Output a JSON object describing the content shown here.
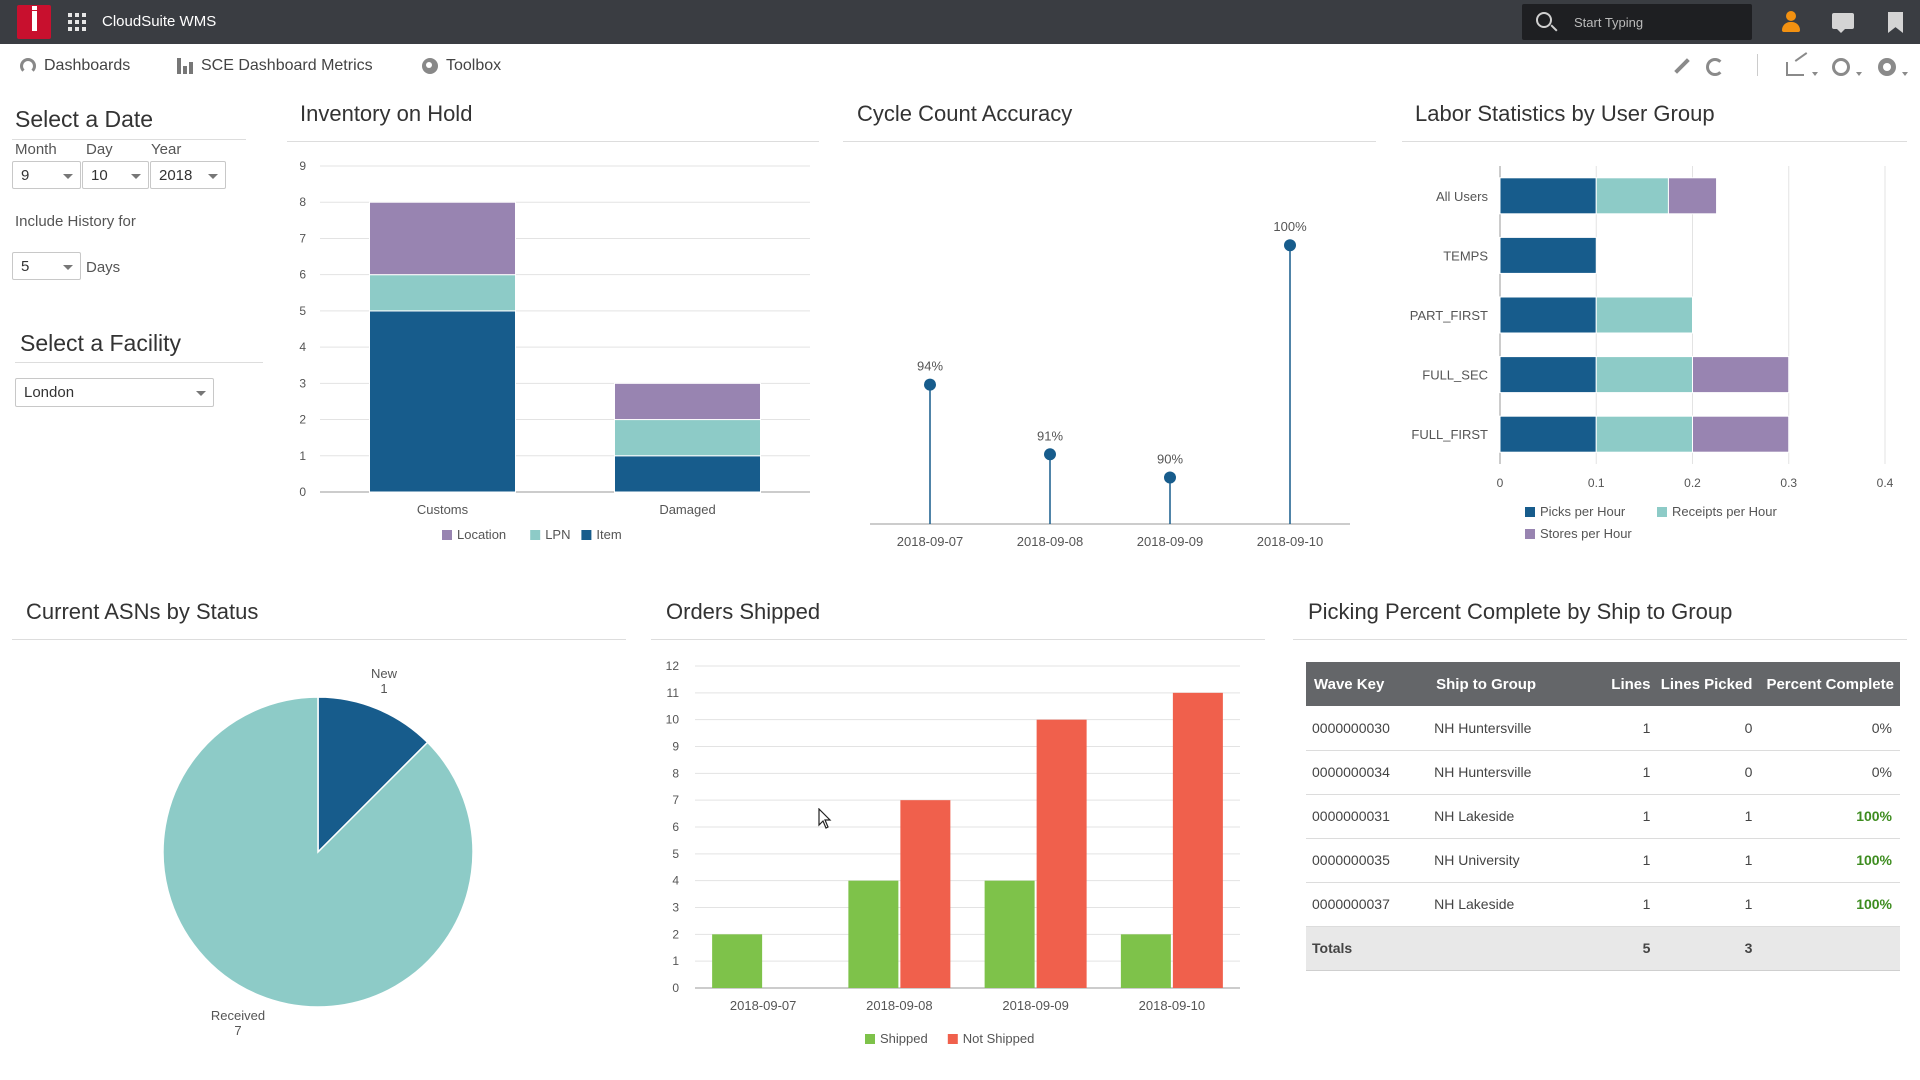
{
  "app": {
    "title": "CloudSuite WMS",
    "search_placeholder": "Start Typing"
  },
  "nav": {
    "dashboards": "Dashboards",
    "sce_metrics": "SCE Dashboard Metrics",
    "toolbox": "Toolbox"
  },
  "filters": {
    "date_title": "Select a Date",
    "month_label": "Month",
    "day_label": "Day",
    "year_label": "Year",
    "month": "9",
    "day": "10",
    "year": "2018",
    "history_label": "Include History for",
    "history_days": "5",
    "days_label": "Days",
    "facility_title": "Select a Facility",
    "facility": "London"
  },
  "panels": {
    "inventory_on_hold": "Inventory on Hold",
    "cycle_count": "Cycle Count Accuracy",
    "labor_stats": "Labor Statistics by User Group",
    "asns": "Current ASNs by Status",
    "orders_shipped": "Orders Shipped",
    "picking": "Picking Percent Complete by Ship to Group"
  },
  "colors": {
    "dark_blue": "#175c8c",
    "teal": "#8dcbc7",
    "purple": "#9884b1",
    "green": "#7ec24a",
    "red": "#f0604c",
    "header_gray": "#646669"
  },
  "chart_data": [
    {
      "id": "inventory",
      "type": "bar",
      "stacked": true,
      "categories": [
        "Customs",
        "Damaged"
      ],
      "series": [
        {
          "name": "Item",
          "values": [
            5,
            1
          ],
          "color": "#175c8c"
        },
        {
          "name": "LPN",
          "values": [
            1,
            1
          ],
          "color": "#8dcbc7"
        },
        {
          "name": "Location",
          "values": [
            2,
            1
          ],
          "color": "#9884b1"
        }
      ],
      "legend_order": [
        "Location",
        "LPN",
        "Item"
      ],
      "ylim": [
        0,
        9
      ],
      "yticks": [
        0,
        1,
        2,
        3,
        4,
        5,
        6,
        7,
        8,
        9
      ],
      "grid": true,
      "legend": "bottom"
    },
    {
      "id": "cycle",
      "type": "scatter",
      "style": "lollipop",
      "x": [
        "2018-09-07",
        "2018-09-08",
        "2018-09-09",
        "2018-09-10"
      ],
      "values": [
        94,
        91,
        90,
        100
      ],
      "labels": [
        "94%",
        "91%",
        "90%",
        "100%"
      ],
      "color": "#175c8c",
      "ylim": [
        88,
        101
      ]
    },
    {
      "id": "labor",
      "type": "bar",
      "orientation": "horizontal",
      "stacked": true,
      "categories": [
        "All Users",
        "TEMPS",
        "PART_FIRST",
        "FULL_SEC",
        "FULL_FIRST"
      ],
      "series": [
        {
          "name": "Picks per Hour",
          "values": [
            0.1,
            0.1,
            0.1,
            0.1,
            0.1
          ],
          "color": "#175c8c"
        },
        {
          "name": "Receipts per Hour",
          "values": [
            0.075,
            0,
            0.1,
            0.1,
            0.1
          ],
          "color": "#8dcbc7"
        },
        {
          "name": "Stores per Hour",
          "values": [
            0.05,
            0,
            0,
            0.1,
            0.1
          ],
          "color": "#9884b1"
        }
      ],
      "xlim": [
        0,
        0.4
      ],
      "xticks": [
        "0",
        "0.1",
        "0.2",
        "0.3",
        "0.4"
      ],
      "grid": true,
      "legend": "bottom"
    },
    {
      "id": "asn",
      "type": "pie",
      "slices": [
        {
          "name": "New",
          "value": 1,
          "color": "#175c8c"
        },
        {
          "name": "Received",
          "value": 7,
          "color": "#8dcbc7"
        }
      ]
    },
    {
      "id": "orders",
      "type": "bar",
      "categories": [
        "2018-09-07",
        "2018-09-08",
        "2018-09-09",
        "2018-09-10"
      ],
      "series": [
        {
          "name": "Shipped",
          "values": [
            2,
            4,
            4,
            2
          ],
          "color": "#7ec24a"
        },
        {
          "name": "Not Shipped",
          "values": [
            0,
            7,
            10,
            11
          ],
          "color": "#f0604c"
        }
      ],
      "ylim": [
        0,
        12
      ],
      "yticks": [
        0,
        1,
        2,
        3,
        4,
        5,
        6,
        7,
        8,
        9,
        10,
        11,
        12
      ],
      "grid": true,
      "legend": "bottom"
    }
  ],
  "picking_table": {
    "headers": [
      "Wave Key",
      "Ship to Group",
      "Lines",
      "Lines Picked",
      "Percent Complete"
    ],
    "rows": [
      [
        "0000000030",
        "NH Huntersville",
        "1",
        "0",
        "0%"
      ],
      [
        "0000000034",
        "NH Huntersville",
        "1",
        "0",
        "0%"
      ],
      [
        "0000000031",
        "NH Lakeside",
        "1",
        "1",
        "100%"
      ],
      [
        "0000000035",
        "NH University",
        "1",
        "1",
        "100%"
      ],
      [
        "0000000037",
        "NH Lakeside",
        "1",
        "1",
        "100%"
      ]
    ],
    "totals": {
      "label": "Totals",
      "lines": "5",
      "picked": "3"
    }
  }
}
